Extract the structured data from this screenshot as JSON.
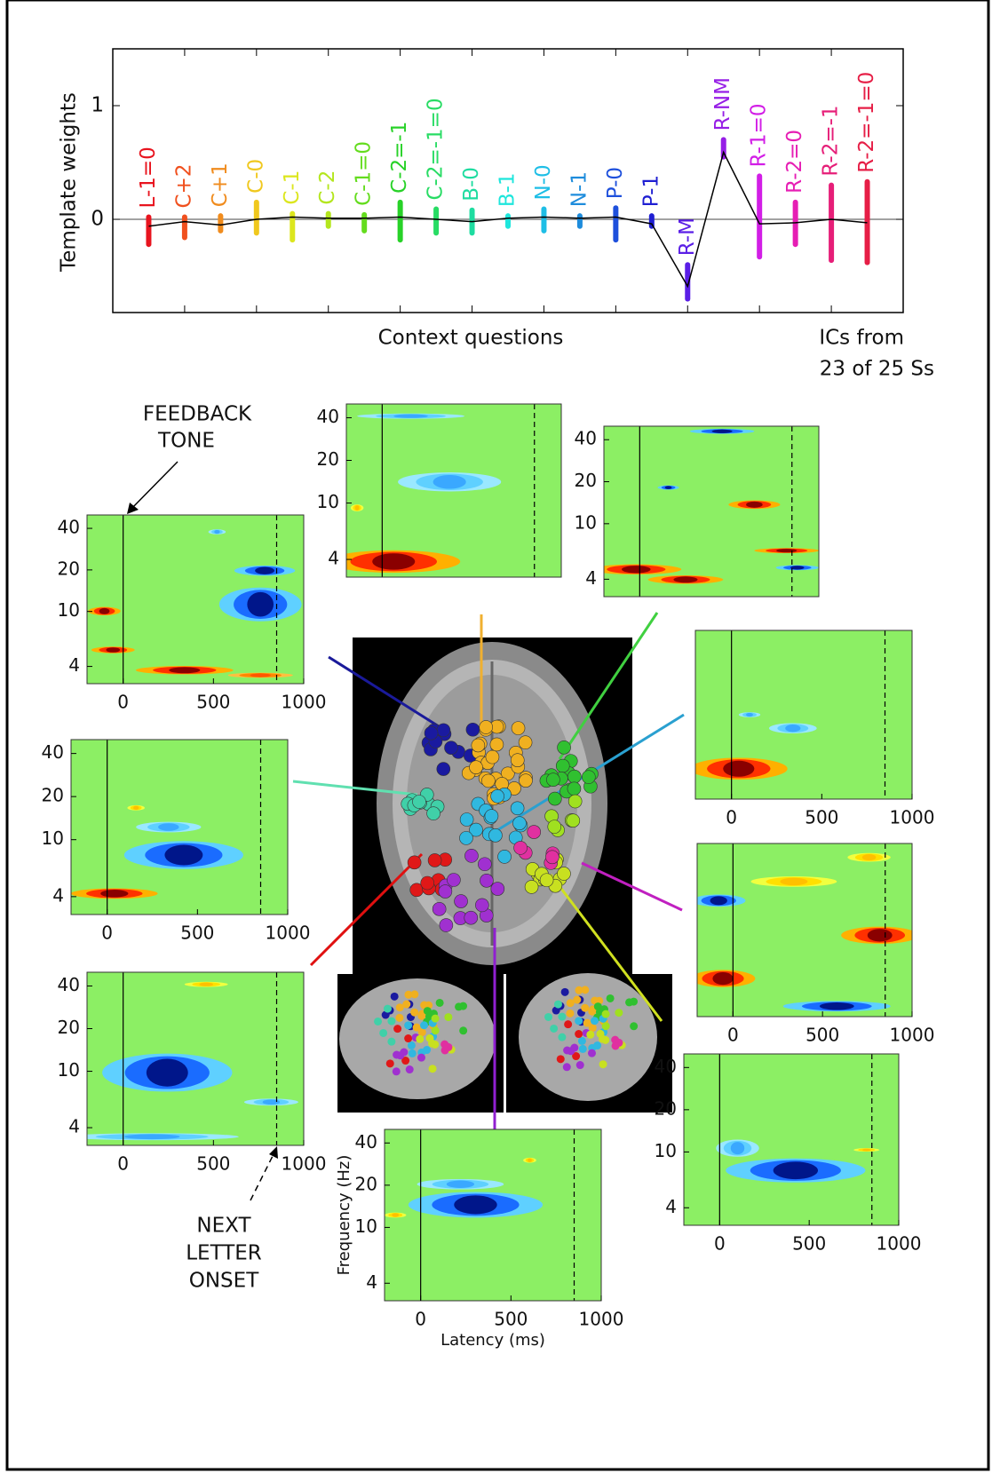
{
  "chart_data": {
    "type": "line",
    "ylabel": "Template weights",
    "xlabel": "Context questions",
    "annotations": [
      "ICs from",
      "23 of 25 Ss"
    ],
    "categories": [
      "L-1=0",
      "C+2",
      "C+1",
      "C-0",
      "C-1",
      "C-2",
      "C-1=0",
      "C-2=-1",
      "C-2=-1=0",
      "B-0",
      "B-1",
      "N-0",
      "N-1",
      "P-0",
      "P-1",
      "R-M",
      "R-NM",
      "R-1=0",
      "R-2=0",
      "R-2=-1",
      "R-2=-1=0"
    ],
    "colors": [
      "#e8141e",
      "#f0501e",
      "#f08c1e",
      "#f0c81e",
      "#dce61e",
      "#b4e61e",
      "#64dc1e",
      "#28d228",
      "#28dc64",
      "#1edca0",
      "#1ee6dc",
      "#1ebee6",
      "#1e8cdc",
      "#1e50dc",
      "#1e1ed2",
      "#5a1ee6",
      "#961ee6",
      "#d21ee6",
      "#e61eb4",
      "#e61e78",
      "#e61e46"
    ],
    "values": [
      -0.06,
      -0.02,
      -0.05,
      0,
      0.02,
      0.01,
      0.01,
      0.02,
      0,
      -0.02,
      0.01,
      0.02,
      0.01,
      0.02,
      -0.04,
      -0.59,
      0.59,
      -0.04,
      -0.03,
      0,
      -0.03
    ],
    "min": [
      -0.22,
      -0.16,
      -0.1,
      -0.12,
      -0.18,
      -0.06,
      -0.1,
      -0.18,
      -0.12,
      -0.12,
      -0.06,
      -0.1,
      -0.06,
      -0.18,
      -0.06,
      -0.7,
      0.55,
      -0.33,
      -0.22,
      -0.36,
      -0.38
    ],
    "max": [
      0.02,
      0.02,
      0.03,
      0.15,
      0.05,
      0.05,
      0.04,
      0.15,
      0.09,
      0.08,
      0.03,
      0.09,
      0.03,
      0.1,
      0.03,
      -0.4,
      0.7,
      0.38,
      0.15,
      0.3,
      0.33
    ],
    "ylim": [
      -0.82,
      1.5
    ],
    "yticks": [
      0,
      1
    ]
  },
  "annotations": {
    "feedback": [
      "FEEDBACK",
      "TONE"
    ],
    "onset": [
      "NEXT",
      "LETTER",
      "ONSET"
    ]
  },
  "panels": [
    {
      "ylim": [
        3,
        50
      ],
      "yscale": "log",
      "yticks": [
        4,
        10,
        20,
        40
      ],
      "xlim": [
        -200,
        1000
      ],
      "xticks": [
        0,
        500,
        1000
      ],
      "vlines": [
        0,
        850
      ]
    },
    {
      "ylim": [
        3,
        50
      ],
      "yscale": "log",
      "yticks": [
        4,
        10,
        20,
        40
      ],
      "xlim": [
        -200,
        1000
      ],
      "vlines": [
        0,
        850
      ]
    },
    {
      "ylim": [
        3,
        50
      ],
      "yscale": "log",
      "yticks": [
        4,
        10,
        20,
        40
      ],
      "xlim": [
        -200,
        1000
      ],
      "vlines": [
        0,
        850
      ]
    },
    {
      "ylim": [
        3,
        50
      ],
      "yscale": "log",
      "yticks": [
        4,
        10,
        20,
        40
      ],
      "xlim": [
        -200,
        1000
      ],
      "xticks": [
        0,
        500,
        1000
      ],
      "vlines": [
        0,
        850
      ]
    },
    {
      "ylim": [
        3,
        50
      ],
      "yscale": "log",
      "xlim": [
        -200,
        1000
      ],
      "xticks": [
        0,
        500,
        1000
      ],
      "vlines": [
        0,
        850
      ]
    },
    {
      "ylim": [
        3,
        50
      ],
      "yscale": "log",
      "xlim": [
        -200,
        1000
      ],
      "xticks": [
        0,
        500,
        1000
      ],
      "vlines": [
        0,
        850
      ]
    },
    {
      "ylim": [
        3,
        50
      ],
      "yscale": "log",
      "yticks": [
        4,
        10,
        20,
        40
      ],
      "xlim": [
        -200,
        1000
      ],
      "xticks": [
        0,
        500,
        1000
      ],
      "vlines": [
        0,
        850
      ]
    },
    {
      "ylim": [
        3,
        50
      ],
      "yscale": "log",
      "yticks": [
        4,
        10,
        20,
        40
      ],
      "xlim": [
        -200,
        1000
      ],
      "xticks": [
        0,
        500,
        1000
      ],
      "vlines": [
        0,
        850
      ]
    },
    {
      "ylim": [
        3,
        50
      ],
      "yscale": "log",
      "yticks": [
        4,
        10,
        20,
        40
      ],
      "xlim": [
        -200,
        1000
      ],
      "xticks": [
        0,
        500,
        1000
      ],
      "vlines": [
        0,
        850
      ],
      "xlabel": "Latency (ms)",
      "ylabel": "Frequency (Hz)"
    }
  ]
}
